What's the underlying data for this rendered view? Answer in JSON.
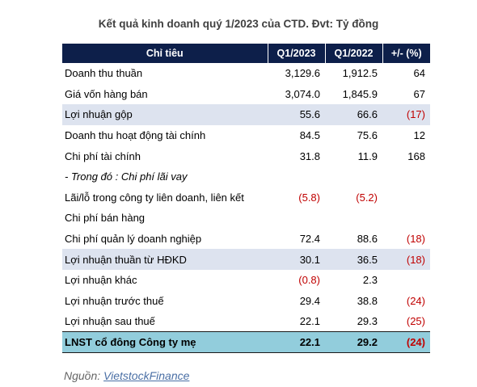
{
  "title": "Kết quả kinh doanh quý 1/2023 của CTD. Đvt: Tỷ đồng",
  "table": {
    "headers": [
      "Chỉ tiêu",
      "Q1/2023",
      "Q1/2022",
      "+/- (%)"
    ],
    "rows": [
      {
        "label": "Doanh thu thuần",
        "q1_2023": "3,129.6",
        "q1_2022": "1,912.5",
        "change": "64"
      },
      {
        "label": "Giá vốn hàng bán",
        "q1_2023": "3,074.0",
        "q1_2022": "1,845.9",
        "change": "67"
      },
      {
        "label": "Lợi nhuận gộp",
        "q1_2023": "55.6",
        "q1_2022": "66.6",
        "change": "(17)"
      },
      {
        "label": "Doanh thu hoạt động tài chính",
        "q1_2023": "84.5",
        "q1_2022": "75.6",
        "change": "12"
      },
      {
        "label": "Chi phí tài chính",
        "q1_2023": "31.8",
        "q1_2022": "11.9",
        "change": "168"
      },
      {
        "label": "- Trong đó : Chi phí lãi vay",
        "q1_2023": "",
        "q1_2022": "",
        "change": ""
      },
      {
        "label": "Lãi/lỗ trong công ty liên doanh, liên kết",
        "q1_2023": "(5.8)",
        "q1_2022": "(5.2)",
        "change": ""
      },
      {
        "label": "Chi phí bán hàng",
        "q1_2023": "",
        "q1_2022": "",
        "change": ""
      },
      {
        "label": "Chi phí quản lý doanh nghiệp",
        "q1_2023": "72.4",
        "q1_2022": "88.6",
        "change": "(18)"
      },
      {
        "label": "Lợi nhuận thuần từ HĐKD",
        "q1_2023": "30.1",
        "q1_2022": "36.5",
        "change": "(18)"
      },
      {
        "label": "Lợi nhuận khác",
        "q1_2023": "(0.8)",
        "q1_2022": "2.3",
        "change": ""
      },
      {
        "label": "Lợi nhuận trước thuế",
        "q1_2023": "29.4",
        "q1_2022": "38.8",
        "change": "(24)"
      },
      {
        "label": "Lợi nhuận sau thuế",
        "q1_2023": "22.1",
        "q1_2022": "29.3",
        "change": "(25)"
      },
      {
        "label": "LNST cổ đông Công ty mẹ",
        "q1_2023": "22.1",
        "q1_2022": "29.2",
        "change": "(24)"
      }
    ]
  },
  "source": {
    "prefix": "Nguồn: ",
    "link_text": "VietstockFinance"
  },
  "colors": {
    "header_bg": "#0d1f4a",
    "shaded_row_bg": "#dde3ef",
    "final_row_bg": "#92cddc",
    "negative_text": "#c00000"
  }
}
